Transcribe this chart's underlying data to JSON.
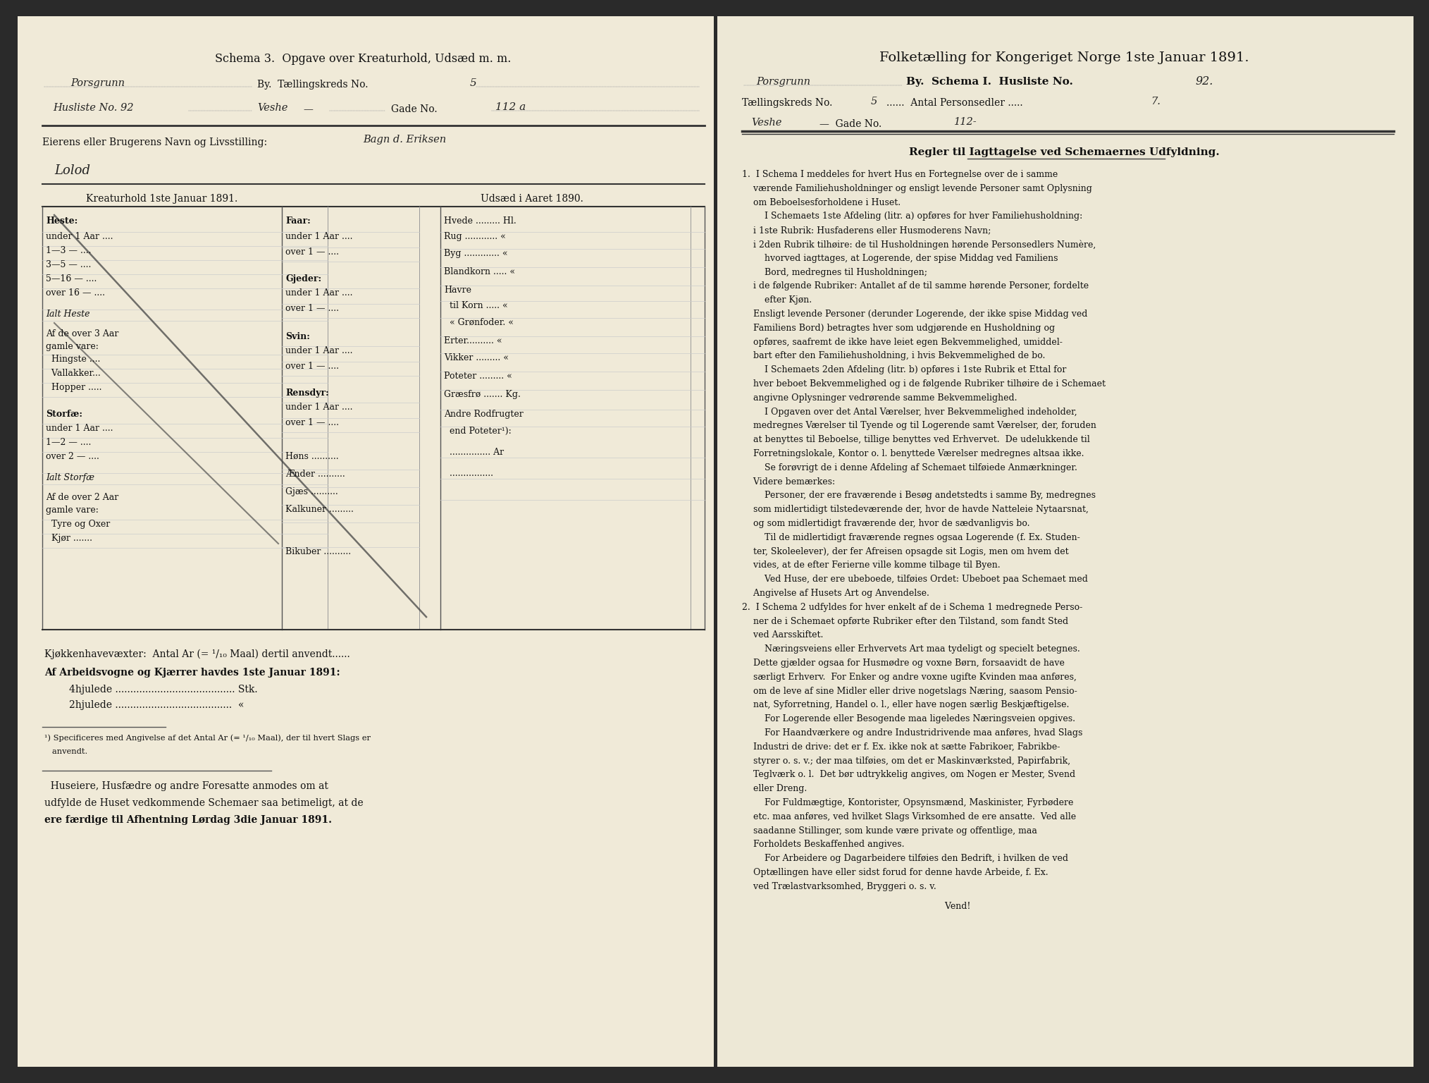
{
  "background_outer": "#2a2a2a",
  "background_page": "#f0ead8",
  "background_page_right": "#ede8d6",
  "title_left": "Schema 3.  Opgave over Kreaturhold, Udsæd m. m.",
  "title_right": "Folketælling for Kongeriget Norge 1ste Januar 1891.",
  "right_section1_title": "Regler til Iagttagelse ved Schemaernes Udfyldning.",
  "right_text_paragraphs": [
    "1.  I Schema I meddeles for hvert Hus en Fortegnelse over de i samme",
    "    værende Familiehusholdninger og ensligt levende Personer samt Oplysning",
    "    om Beboelsesforholdene i Huset.",
    "        I Schemaets 1ste Afdeling (litr. a) opføres for hver Familiehusholdning:",
    "    i 1ste Rubrik: Husfaderens eller Husmoderens Navn;",
    "    i 2den Rubrik tilhøire: de til Husholdningen hørende Personsedlers Numère,",
    "        hvorved iagttages, at Logerende, der spise Middag ved Familiens",
    "        Bord, medregnes til Husholdningen;",
    "    i de følgende Rubriker: Antallet af de til samme hørende Personer, fordelte",
    "        efter Kjøn.",
    "    Ensligt levende Personer (derunder Logerende, der ikke spise Middag ved",
    "    Familiens Bord) betragtes hver som udgjørende en Husholdning og",
    "    opføres, saafremt de ikke have leiet egen Bekvemmelighed, umiddel-",
    "    bart efter den Familiehusholdning, i hvis Bekvemmelighed de bo.",
    "        I Schemaets 2den Afdeling (litr. b) opføres i 1ste Rubrik et Ettal for",
    "    hver beboet Bekvemmelighed og i de følgende Rubriker tilhøire de i Schemaet",
    "    angivne Oplysninger vedrørende samme Bekvemmelighed.",
    "        I Opgaven over det Antal Værelser, hver Bekvemmelighed indeholder,",
    "    medregnes Værelser til Tyende og til Logerende samt Værelser, der, foruden",
    "    at benyttes til Beboelse, tillige benyttes ved Erhvervet.  De udelukkende til",
    "    Forretningslokale, Kontor o. l. benyttede Værelser medregnes altsaa ikke.",
    "        Se forøvrigt de i denne Afdeling af Schemaet tilføiede Anmærkninger.",
    "    Videre bemærkes:",
    "        Personer, der ere fraværende i Besøg andetstedts i samme By, medregnes",
    "    som midlertidigt tilstedeværende der, hvor de havde Natteleie Nytaarsnat,",
    "    og som midlertidigt fraværende der, hvor de sædvanligvis bo.",
    "        Til de midlertidigt fraværende regnes ogsaa Logerende (f. Ex. Studen-",
    "    ter, Skoleelever), der fer Afreisen opsagde sit Logis, men om hvem det",
    "    vides, at de efter Ferierne ville komme tilbage til Byen.",
    "        Ved Huse, der ere ubeboede, tilføies Ordet: Ubeboet paa Schemaet med",
    "    Angivelse af Husets Art og Anvendelse.",
    "2.  I Schema 2 udfyldes for hver enkelt af de i Schema 1 medregnede Perso-",
    "    ner de i Schemaet opførte Rubriker efter den Tilstand, som fandt Sted",
    "    ved Aarsskiftet.",
    "        Næringsveiens eller Erhvervets Art maa tydeligt og specielt betegnes.",
    "    Dette gjælder ogsaa for Husmødre og voxne Børn, forsaavidt de have",
    "    særligt Erhverv.  For Enker og andre voxne ugifte Kvinden maa anføres,",
    "    om de leve af sine Midler eller drive nogetslags Næring, saasom Pensio-",
    "    nat, Syforretning, Handel o. l., eller have nogen særlig Beskjæftigelse.",
    "        For Logerende eller Besogende maa ligeledes Næringsveien opgives.",
    "        For Haandværkere og andre Industridrivende maa anføres, hvad Slags",
    "    Industri de drive: det er f. Ex. ikke nok at sætte Fabrikoer, Fabrikbe-",
    "    styrer o. s. v.; der maa tilføies, om det er Maskinværksted, Papirfabrik,",
    "    Teglværk o. l.  Det bør udtrykkelig angives, om Nogen er Mester, Svend",
    "    eller Dreng.",
    "        For Fuldmægtige, Kontorister, Opsynsmænd, Maskinister, Fyrbødere",
    "    etc. maa anføres, ved hvilket Slags Virksomhed de ere ansatte.  Ved alle",
    "    saadanne Stillinger, som kunde være private og offentlige, maa",
    "    Forholdets Beskaffenhed angives.",
    "        For Arbeidere og Dagarbeidere tilføies den Bedrift, i hvilken de ved",
    "    Optællingen have eller sidst forud for denne havde Arbeide, f. Ex.",
    "    ved Trælastvarksomhed, Bryggeri o. s. v.",
    "",
    "                                                                        Vend!"
  ]
}
